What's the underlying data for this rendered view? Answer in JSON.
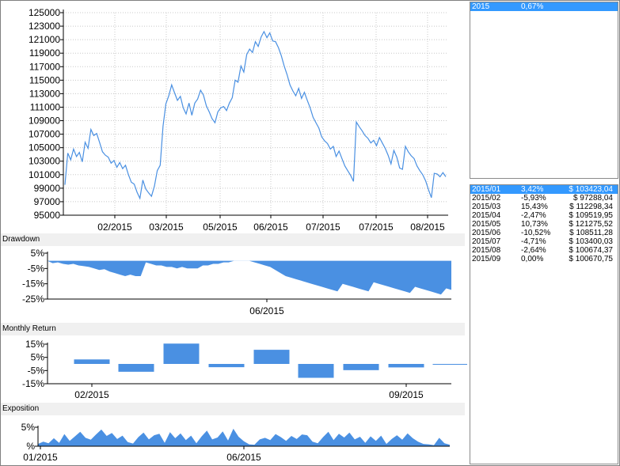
{
  "panels": {
    "drawdown_title": "Drawdown",
    "monthly_title": "Monthly Return",
    "exposition_title": "Exposition"
  },
  "year_list": [
    {
      "year": "2015",
      "ret": "0,67%"
    }
  ],
  "month_list": [
    {
      "month": "2015/01",
      "ret": "3,42%",
      "value": "$ 103423,04"
    },
    {
      "month": "2015/02",
      "ret": "-5,93%",
      "value": "$ 97288,04"
    },
    {
      "month": "2015/03",
      "ret": "15,43%",
      "value": "$ 112298,34"
    },
    {
      "month": "2015/04",
      "ret": "-2,47%",
      "value": "$ 109519,95"
    },
    {
      "month": "2015/05",
      "ret": "10,73%",
      "value": "$ 121275,52"
    },
    {
      "month": "2015/06",
      "ret": "-10,52%",
      "value": "$ 108511,28"
    },
    {
      "month": "2015/07",
      "ret": "-4,71%",
      "value": "$ 103400,03"
    },
    {
      "month": "2015/08",
      "ret": "-2,64%",
      "value": "$ 100674,37"
    },
    {
      "month": "2015/09",
      "ret": "0,00%",
      "value": "$ 100670,75"
    }
  ],
  "colors": {
    "series": "#4a90e2",
    "bars": "#4a90e2",
    "selection": "#3399ff",
    "grid": "#c8c8c8"
  },
  "chart_data": [
    {
      "type": "line",
      "title": "",
      "ylim": [
        95000,
        125000
      ],
      "y_ticks": [
        "125000",
        "123000",
        "121000",
        "119000",
        "117000",
        "115000",
        "113000",
        "111000",
        "109000",
        "107000",
        "105000",
        "103000",
        "101000",
        "99000",
        "97000",
        "95000"
      ],
      "x_ticks": [
        "02/2015",
        "03/2015",
        "05/2015",
        "06/2015",
        "07/2015",
        "07/2015",
        "08/2015"
      ],
      "series": [
        {
          "values": [
            99500,
            104200,
            103200,
            104800,
            103700,
            104300,
            102900,
            105800,
            104900,
            107700,
            106800,
            107100,
            105800,
            104400,
            103900,
            103600,
            102700,
            103100,
            102100,
            102800,
            101900,
            102400,
            101000,
            99900,
            99600,
            98400,
            97500,
            100200,
            98900,
            98300,
            97800,
            99300,
            101600,
            102400,
            108200,
            111500,
            112700,
            114300,
            113100,
            112000,
            112600,
            110900,
            110000,
            111600,
            109800,
            111600,
            112200,
            113500,
            112800,
            111200,
            110300,
            109300,
            108700,
            110300,
            110900,
            111100,
            110500,
            111600,
            112400,
            115000,
            114700,
            117100,
            116200,
            118800,
            119600,
            119100,
            120700,
            120000,
            121400,
            122200,
            121300,
            122000,
            120800,
            120700,
            119800,
            118600,
            117100,
            115800,
            114300,
            113400,
            112700,
            113800,
            112300,
            113200,
            112000,
            110900,
            109500,
            108700,
            107900,
            106600,
            106000,
            105600,
            104800,
            105200,
            103700,
            104500,
            103400,
            102300,
            101600,
            100900,
            100000,
            108800,
            108100,
            107500,
            106800,
            106400,
            105700,
            106100,
            105300,
            106500,
            105700,
            104900,
            103900,
            102600,
            104600,
            103600,
            102000,
            101800,
            105200,
            104400,
            103800,
            103400,
            102300,
            101600,
            101000,
            100100,
            98800,
            97600,
            101200,
            101100,
            100700,
            101300,
            100700
          ]
        }
      ]
    },
    {
      "type": "area",
      "title": "Drawdown",
      "y_ticks": [
        "5%",
        "-5%",
        "-15%",
        "-25%"
      ],
      "ylim": [
        -25,
        5
      ],
      "x_ticks": [
        "06/2015"
      ],
      "series": [
        {
          "values": [
            0,
            -1.5,
            -1,
            -2,
            -2.5,
            -2,
            -3,
            -3.5,
            -4,
            -5,
            -6,
            -5.5,
            -7,
            -8,
            -9,
            -10,
            -9,
            -10,
            -10,
            -1,
            -2,
            -3,
            -3,
            -4,
            -4,
            -5,
            -4,
            -5,
            -5,
            -5,
            -3,
            -3,
            -2,
            -2,
            -1,
            -1,
            0,
            0,
            0,
            0,
            -1,
            -2,
            -3,
            -4,
            -6,
            -8,
            -10,
            -11,
            -12,
            -13,
            -14,
            -15,
            -16,
            -17,
            -18,
            -19,
            -20,
            -15,
            -16,
            -17,
            -18,
            -19,
            -20,
            -14,
            -15,
            -16,
            -17,
            -18,
            -19,
            -20,
            -21,
            -17,
            -18,
            -19,
            -20,
            -21,
            -22,
            -18,
            -19
          ]
        }
      ]
    },
    {
      "type": "bar",
      "title": "Monthly Return",
      "categories": [
        "2015/01",
        "2015/02",
        "2015/03",
        "2015/04",
        "2015/05",
        "2015/06",
        "2015/07",
        "2015/08",
        "2015/09"
      ],
      "values": [
        3.42,
        -5.93,
        15.43,
        -2.47,
        10.73,
        -10.52,
        -4.71,
        -2.64,
        0.0
      ],
      "y_ticks": [
        "15%",
        "5%",
        "-5%",
        "-15%"
      ],
      "ylim": [
        -15,
        15
      ],
      "x_ticks": [
        "02/2015",
        "09/2015"
      ]
    },
    {
      "type": "area",
      "title": "Exposition",
      "y_ticks": [
        "5%",
        "%"
      ],
      "x_ticks": [
        "01/2015",
        "06/2015"
      ],
      "series": [
        {
          "values": [
            0.6,
            1.2,
            0.8,
            2.1,
            0.9,
            3.2,
            1.4,
            2.6,
            3.8,
            2.2,
            1.7,
            3.1,
            4.4,
            2.7,
            3.5,
            1.9,
            2.8,
            1.1,
            0.7,
            2.4,
            3.6,
            1.8,
            2.9,
            3.3,
            0.9,
            3.7,
            2.1,
            3.4,
            1.6,
            2.8,
            0.8,
            2.6,
            4.1,
            1.8,
            2.3,
            3.9,
            1.5,
            4.6,
            2.5,
            1.3,
            0.5,
            0.4,
            1.8,
            2.2,
            1.6,
            3.2,
            2.4,
            1.4,
            2.7,
            1.9,
            3.1,
            2.9,
            1.2,
            0.8,
            2.4,
            3.8,
            1.6,
            3.3,
            2.3,
            3.6,
            1.8,
            2.5,
            0.9,
            2.6,
            1.4,
            2.8,
            0.6,
            1.9,
            2.9,
            1.7,
            3.4,
            2.1,
            1.2,
            0.6,
            0.5,
            0.3,
            2.2,
            0.8,
            0.4
          ]
        }
      ]
    }
  ]
}
